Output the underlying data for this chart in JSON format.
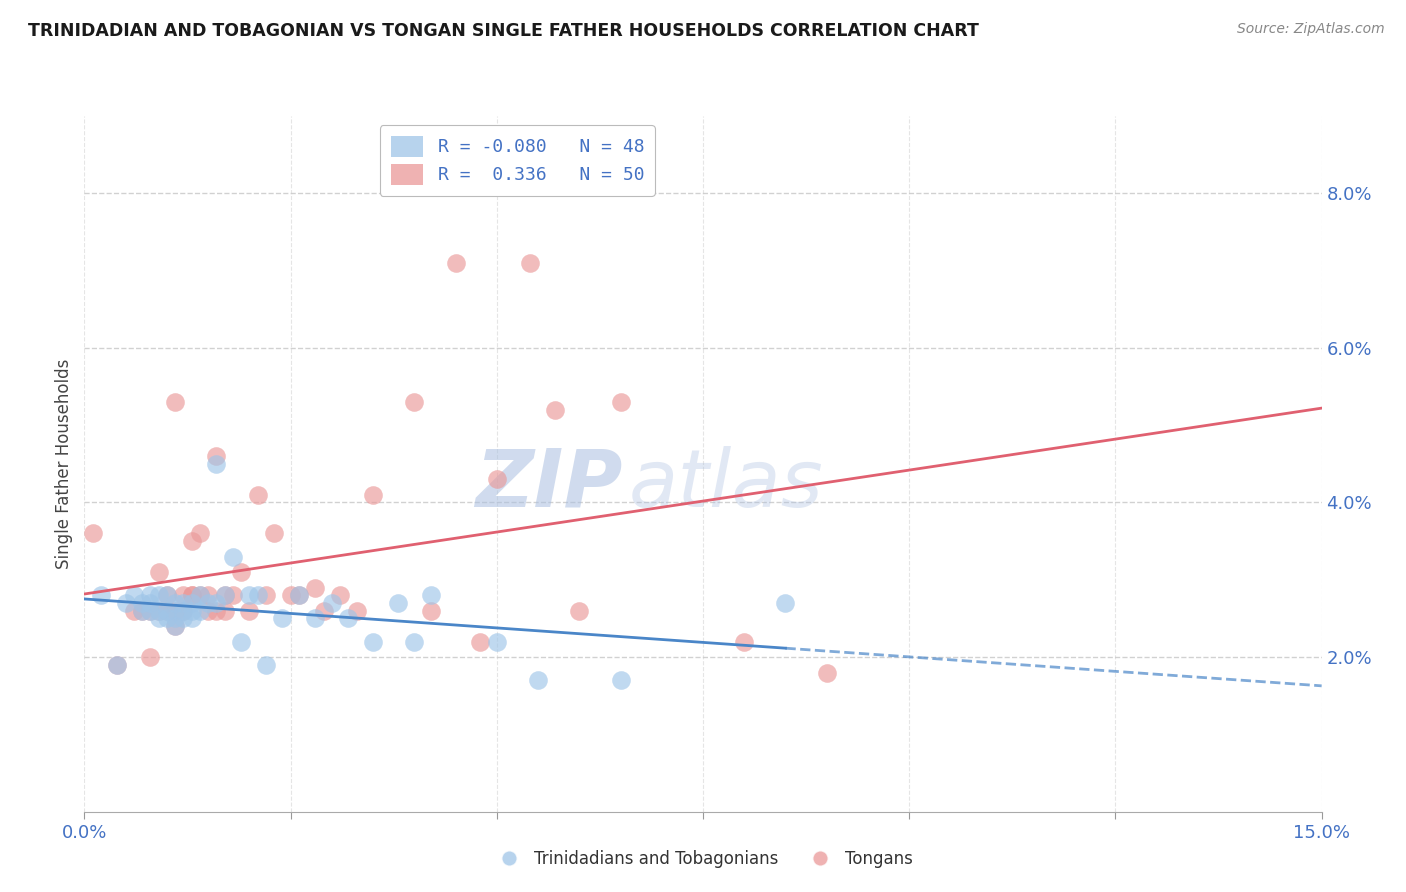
{
  "title": "TRINIDADIAN AND TOBAGONIAN VS TONGAN SINGLE FATHER HOUSEHOLDS CORRELATION CHART",
  "source": "Source: ZipAtlas.com",
  "ylabel": "Single Father Households",
  "ytick_labels": [
    "2.0%",
    "4.0%",
    "6.0%",
    "8.0%"
  ],
  "ytick_values": [
    0.02,
    0.04,
    0.06,
    0.08
  ],
  "xlim": [
    0.0,
    0.15
  ],
  "ylim": [
    0.0,
    0.09
  ],
  "legend_blue_R": "-0.080",
  "legend_blue_N": "48",
  "legend_pink_R": "0.336",
  "legend_pink_N": "50",
  "blue_color": "#9fc5e8",
  "pink_color": "#ea9999",
  "blue_line_color": "#4a86c8",
  "pink_line_color": "#e06070",
  "label_color": "#4472c4",
  "watermark_zip": "ZIP",
  "watermark_atlas": "atlas",
  "blue_scatter_x": [
    0.002,
    0.004,
    0.005,
    0.006,
    0.007,
    0.007,
    0.008,
    0.008,
    0.008,
    0.009,
    0.009,
    0.009,
    0.01,
    0.01,
    0.01,
    0.011,
    0.011,
    0.011,
    0.012,
    0.012,
    0.012,
    0.013,
    0.013,
    0.013,
    0.014,
    0.014,
    0.015,
    0.016,
    0.016,
    0.017,
    0.018,
    0.019,
    0.02,
    0.021,
    0.022,
    0.024,
    0.026,
    0.028,
    0.03,
    0.032,
    0.035,
    0.038,
    0.04,
    0.042,
    0.05,
    0.055,
    0.065,
    0.085
  ],
  "blue_scatter_y": [
    0.028,
    0.019,
    0.027,
    0.028,
    0.026,
    0.027,
    0.026,
    0.027,
    0.028,
    0.025,
    0.026,
    0.028,
    0.025,
    0.026,
    0.028,
    0.024,
    0.025,
    0.027,
    0.025,
    0.026,
    0.027,
    0.025,
    0.026,
    0.027,
    0.026,
    0.028,
    0.027,
    0.045,
    0.027,
    0.028,
    0.033,
    0.022,
    0.028,
    0.028,
    0.019,
    0.025,
    0.028,
    0.025,
    0.027,
    0.025,
    0.022,
    0.027,
    0.022,
    0.028,
    0.022,
    0.017,
    0.017,
    0.027
  ],
  "pink_scatter_x": [
    0.001,
    0.004,
    0.006,
    0.007,
    0.008,
    0.008,
    0.009,
    0.009,
    0.01,
    0.01,
    0.011,
    0.011,
    0.011,
    0.012,
    0.012,
    0.013,
    0.013,
    0.013,
    0.014,
    0.014,
    0.015,
    0.015,
    0.016,
    0.016,
    0.017,
    0.017,
    0.018,
    0.019,
    0.02,
    0.021,
    0.022,
    0.023,
    0.025,
    0.026,
    0.028,
    0.029,
    0.031,
    0.033,
    0.035,
    0.04,
    0.042,
    0.045,
    0.048,
    0.05,
    0.054,
    0.057,
    0.06,
    0.065,
    0.08,
    0.09
  ],
  "pink_scatter_y": [
    0.036,
    0.019,
    0.026,
    0.026,
    0.02,
    0.026,
    0.026,
    0.031,
    0.026,
    0.028,
    0.024,
    0.026,
    0.053,
    0.026,
    0.028,
    0.028,
    0.035,
    0.028,
    0.028,
    0.036,
    0.026,
    0.028,
    0.026,
    0.046,
    0.026,
    0.028,
    0.028,
    0.031,
    0.026,
    0.041,
    0.028,
    0.036,
    0.028,
    0.028,
    0.029,
    0.026,
    0.028,
    0.026,
    0.041,
    0.053,
    0.026,
    0.071,
    0.022,
    0.043,
    0.071,
    0.052,
    0.026,
    0.053,
    0.022,
    0.018
  ]
}
